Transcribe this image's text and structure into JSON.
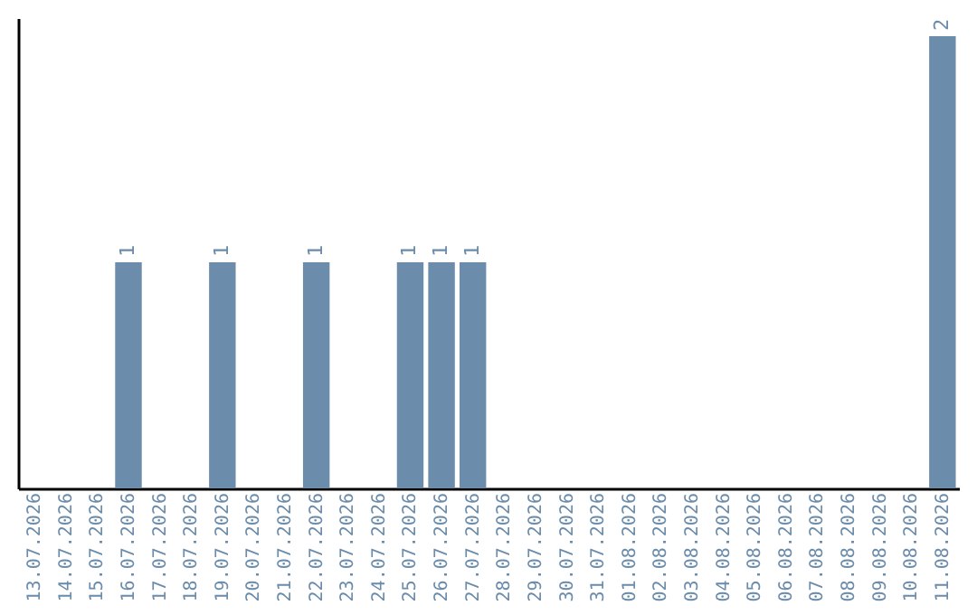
{
  "chart_data": {
    "type": "bar",
    "categories": [
      "13.07.2026",
      "14.07.2026",
      "15.07.2026",
      "16.07.2026",
      "17.07.2026",
      "18.07.2026",
      "19.07.2026",
      "20.07.2026",
      "21.07.2026",
      "22.07.2026",
      "23.07.2026",
      "24.07.2026",
      "25.07.2026",
      "26.07.2026",
      "27.07.2026",
      "28.07.2026",
      "29.07.2026",
      "30.07.2026",
      "31.07.2026",
      "01.08.2026",
      "02.08.2026",
      "03.08.2026",
      "04.08.2026",
      "05.08.2026",
      "06.08.2026",
      "07.08.2026",
      "08.08.2026",
      "09.08.2026",
      "10.08.2026",
      "11.08.2026"
    ],
    "values": [
      null,
      null,
      null,
      1,
      null,
      null,
      1,
      null,
      null,
      1,
      null,
      null,
      1,
      1,
      1,
      null,
      null,
      null,
      null,
      null,
      null,
      null,
      null,
      null,
      null,
      null,
      null,
      null,
      null,
      2
    ],
    "color": "#6b8cab",
    "ylim": [
      0,
      2.08
    ],
    "data_labels": true,
    "tick_labels": "x",
    "grid": false
  }
}
